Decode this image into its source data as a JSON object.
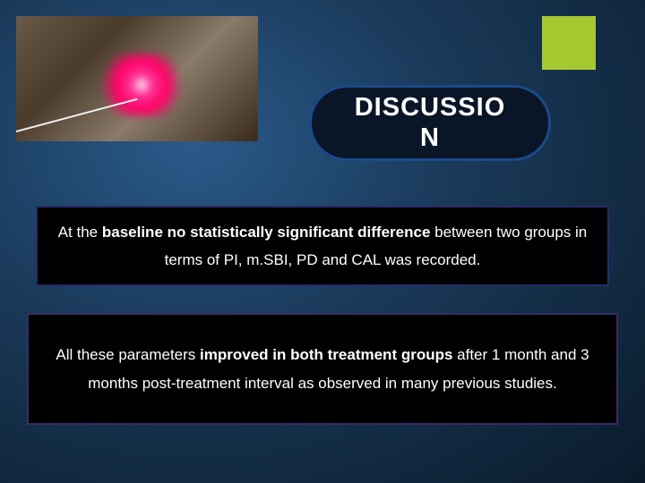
{
  "accent": {
    "color": "#a8c832"
  },
  "title": {
    "text": "DISCUSSIO\nN",
    "border_color": "#1a4a8a",
    "bg_color": "#0a1628",
    "text_color": "#ffffff",
    "fontsize": 29
  },
  "box1": {
    "prefix": "At the ",
    "bold": "baseline no statistically significant difference",
    "suffix": " between two groups in terms of  PI, m.SBI, PD and CAL was recorded.",
    "border_color": "#2a2a6a"
  },
  "box2": {
    "prefix": "All these parameters ",
    "bold": "improved in both treatment groups",
    "suffix": " after 1 month and 3 months post-treatment interval as observed in many previous studies.",
    "border_color": "#3a2a6a"
  },
  "body_text": {
    "color": "#ffffff",
    "fontsize": 17
  },
  "background": {
    "gradient_inner": "#2a5a8a",
    "gradient_outer": "#0a1a2a"
  }
}
